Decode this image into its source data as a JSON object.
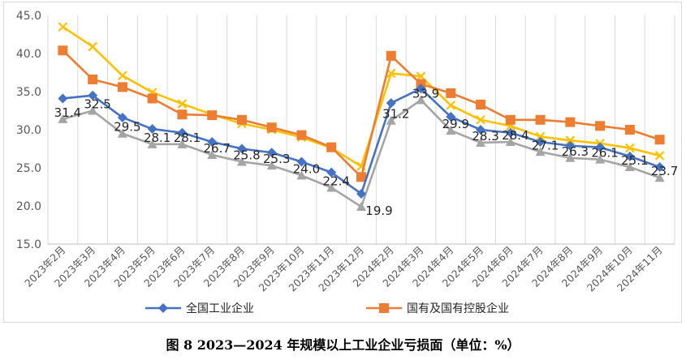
{
  "chart_data": {
    "type": "line",
    "caption": "图 8   2023—2024 年规模以上工业企业亏损面（单位：%）",
    "categories": [
      "2023年2月",
      "2023年3月",
      "2023年4月",
      "2023年5月",
      "2023年6月",
      "2023年7月",
      "2023年8月",
      "2023年9月",
      "2023年10月",
      "2023年11月",
      "2023年12月",
      "2024年2月",
      "2024年3月",
      "2024年4月",
      "2024年5月",
      "2024年6月",
      "2024年7月",
      "2024年8月",
      "2024年9月",
      "2024年10月",
      "2024年11月"
    ],
    "ylim": [
      15.0,
      45.0
    ],
    "yticks": [
      "15.0",
      "20.0",
      "25.0",
      "30.0",
      "35.0",
      "40.0",
      "45.0"
    ],
    "series": [
      {
        "name": "全国工业企业",
        "color": "#4472c4",
        "marker": "diamond",
        "values": [
          34.1,
          34.5,
          31.6,
          30.1,
          29.6,
          28.4,
          27.5,
          27.0,
          25.8,
          24.4,
          21.6,
          33.5,
          35.4,
          31.7,
          30.0,
          29.6,
          28.4,
          27.9,
          27.7,
          26.5,
          25.1
        ]
      },
      {
        "name": "国有及国有控股企业",
        "color": "#ed7d31",
        "marker": "square",
        "values": [
          40.4,
          36.6,
          35.6,
          34.1,
          32.0,
          31.9,
          31.3,
          30.3,
          29.3,
          27.7,
          23.8,
          39.7,
          36.0,
          34.8,
          33.3,
          31.3,
          31.3,
          31.0,
          30.5,
          30.0,
          28.7
        ]
      },
      {
        "name": "",
        "color": "#a5a5a5",
        "marker": "triangle",
        "values": [
          31.4,
          32.5,
          29.5,
          28.1,
          28.1,
          26.7,
          25.8,
          25.3,
          24.0,
          22.4,
          19.9,
          31.2,
          33.9,
          29.9,
          28.3,
          28.4,
          27.1,
          26.3,
          26.1,
          25.1,
          23.7
        ]
      },
      {
        "name": "",
        "color": "#ffc000",
        "marker": "x",
        "values": [
          43.5,
          40.9,
          37.1,
          34.9,
          33.4,
          32.0,
          30.8,
          30.0,
          29.0,
          27.6,
          25.2,
          37.4,
          37.0,
          33.2,
          31.3,
          30.5,
          29.1,
          28.6,
          28.2,
          27.6,
          26.6
        ]
      }
    ],
    "data_labels": {
      "series_index": 2,
      "values": [
        "31.4",
        "32.5",
        "29.5",
        "28.1",
        "28.1",
        "26.7",
        "25.8",
        "25.3",
        "24.0",
        "22.4",
        "19.9",
        "31.2",
        "33.9",
        "29.9",
        "28.3",
        "28.4",
        "27.1",
        "26.3",
        "26.1",
        "25.1",
        "23.7"
      ]
    },
    "legend": [
      {
        "label": "全国工业企业",
        "color": "#4472c4",
        "marker": "diamond"
      },
      {
        "label": "国有及国有控股企业",
        "color": "#ed7d31",
        "marker": "square"
      }
    ],
    "legend_position": "bottom",
    "grid": "vertical"
  }
}
